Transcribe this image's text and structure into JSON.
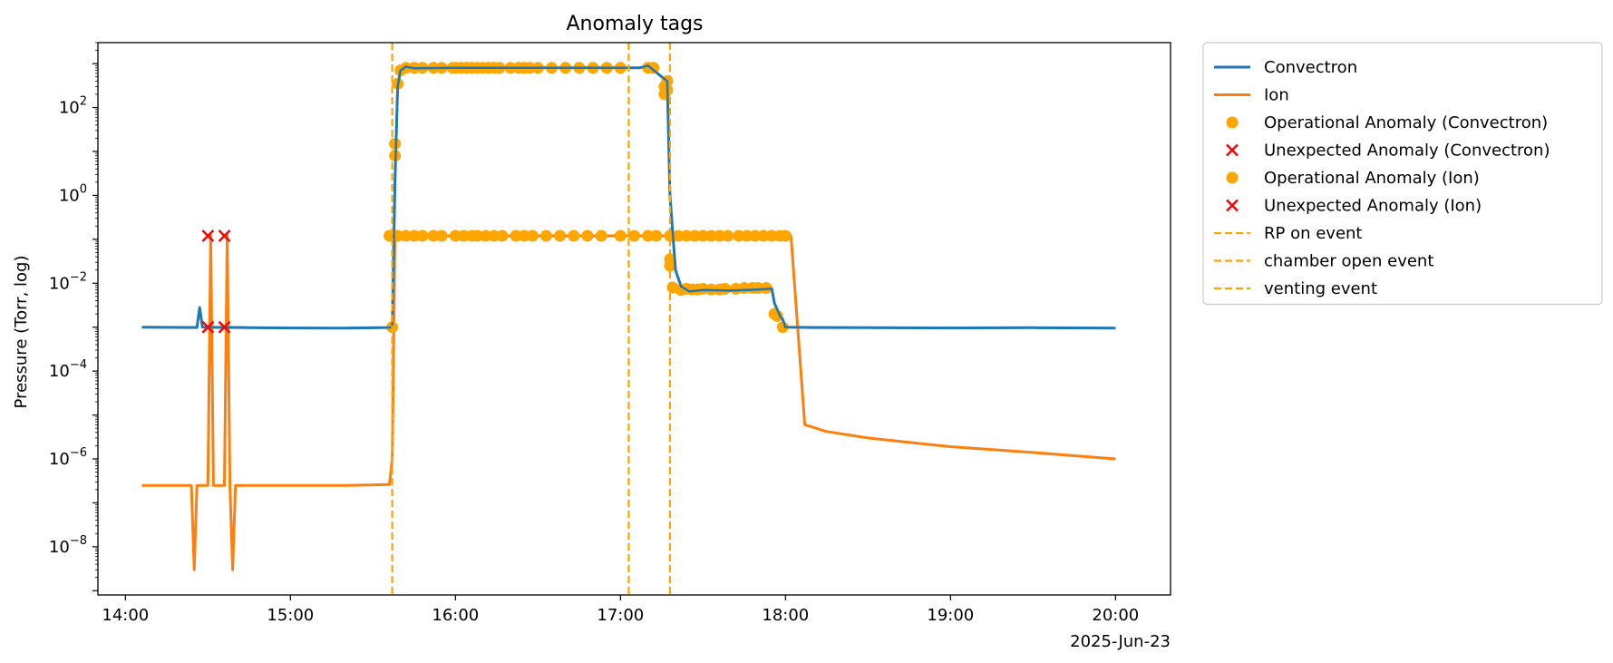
{
  "chart_data": {
    "type": "line",
    "title": "Anomaly tags",
    "ylabel": "Pressure (Torr, log)",
    "xlabel": "",
    "x_date_label": "2025-Jun-23",
    "yscale": "log",
    "ylim": [
      8e-10,
      3000
    ],
    "xlim": [
      "13:50",
      "20:20"
    ],
    "x_ticks": [
      "14:00",
      "15:00",
      "16:00",
      "17:00",
      "18:00",
      "19:00",
      "20:00"
    ],
    "y_ticks": [
      {
        "exp": 2,
        "value": 100
      },
      {
        "exp": 0,
        "value": 1
      },
      {
        "exp": -2,
        "value": 0.01
      },
      {
        "exp": -4,
        "value": 0.0001
      },
      {
        "exp": -6,
        "value": 1e-06
      },
      {
        "exp": -8,
        "value": 1e-08
      }
    ],
    "grid": false,
    "legend_position": "outside-upper-right",
    "colors": {
      "convectron": "#1f77b4",
      "ion": "#ff7f0e",
      "operational": "#ffa500",
      "unexpected": "#ff0000",
      "event": "#ffa500"
    },
    "series": [
      {
        "name": "Convectron",
        "key": "convectron",
        "points": [
          [
            "14:06",
            0.001
          ],
          [
            "14:26",
            0.00098
          ],
          [
            "14:27",
            0.0028
          ],
          [
            "14:28",
            0.001
          ],
          [
            "14:45",
            0.00097
          ],
          [
            "15:00",
            0.00096
          ],
          [
            "15:20",
            0.00095
          ],
          [
            "15:36",
            0.00098
          ],
          [
            "15:37",
            0.001
          ],
          [
            "15:38",
            2
          ],
          [
            "15:39",
            300
          ],
          [
            "15:40",
            700
          ],
          [
            "15:42",
            850
          ],
          [
            "15:45",
            780
          ],
          [
            "16:00",
            800
          ],
          [
            "16:30",
            800
          ],
          [
            "17:00",
            800
          ],
          [
            "17:07",
            800
          ],
          [
            "17:10",
            900
          ],
          [
            "17:15",
            500
          ],
          [
            "17:17",
            400
          ],
          [
            "17:18",
            1
          ],
          [
            "17:20",
            0.02
          ],
          [
            "17:22",
            0.0085
          ],
          [
            "17:25",
            0.0065
          ],
          [
            "17:30",
            0.007
          ],
          [
            "17:40",
            0.0068
          ],
          [
            "17:50",
            0.0072
          ],
          [
            "17:55",
            0.0075
          ],
          [
            "17:56",
            0.0035
          ],
          [
            "17:58",
            0.0018
          ],
          [
            "17:59",
            0.0015
          ],
          [
            "18:00",
            0.001
          ],
          [
            "18:10",
            0.00098
          ],
          [
            "18:30",
            0.00097
          ],
          [
            "19:00",
            0.00096
          ],
          [
            "19:30",
            0.00097
          ],
          [
            "20:00",
            0.00095
          ]
        ]
      },
      {
        "name": "Ion",
        "key": "ion",
        "points": [
          [
            "14:06",
            2.5e-07
          ],
          [
            "14:24",
            2.5e-07
          ],
          [
            "14:25",
            3e-09
          ],
          [
            "14:26",
            2.5e-07
          ],
          [
            "14:30",
            2.5e-07
          ],
          [
            "14:31",
            0.12
          ],
          [
            "14:32",
            2.5e-07
          ],
          [
            "14:36",
            2.5e-07
          ],
          [
            "14:37",
            0.12
          ],
          [
            "14:38",
            2.5e-07
          ],
          [
            "14:39",
            3e-09
          ],
          [
            "14:40",
            2.5e-07
          ],
          [
            "15:00",
            2.5e-07
          ],
          [
            "15:20",
            2.5e-07
          ],
          [
            "15:36",
            2.6e-07
          ],
          [
            "15:37",
            1e-06
          ],
          [
            "15:38",
            0.12
          ],
          [
            "16:00",
            0.12
          ],
          [
            "17:00",
            0.12
          ],
          [
            "17:30",
            0.12
          ],
          [
            "18:00",
            0.12
          ],
          [
            "18:02",
            0.12
          ],
          [
            "18:07",
            6e-06
          ],
          [
            "18:15",
            4.2e-06
          ],
          [
            "18:30",
            3e-06
          ],
          [
            "19:00",
            1.9e-06
          ],
          [
            "19:30",
            1.4e-06
          ],
          [
            "20:00",
            1e-06
          ]
        ]
      }
    ],
    "operational_anomalies_convectron": [
      [
        "15:37",
        0.001
      ],
      [
        "15:38",
        8
      ],
      [
        "15:38",
        15
      ],
      [
        "15:39",
        350
      ],
      [
        "15:40",
        700
      ],
      [
        "15:42",
        800
      ],
      [
        "15:45",
        800
      ],
      [
        "15:48",
        800
      ],
      [
        "15:52",
        800
      ],
      [
        "15:55",
        800
      ],
      [
        "15:59",
        800
      ],
      [
        "16:00",
        800
      ],
      [
        "16:02",
        800
      ],
      [
        "16:04",
        800
      ],
      [
        "16:06",
        800
      ],
      [
        "16:08",
        800
      ],
      [
        "16:10",
        800
      ],
      [
        "16:12",
        800
      ],
      [
        "16:14",
        800
      ],
      [
        "16:16",
        800
      ],
      [
        "16:20",
        800
      ],
      [
        "16:23",
        800
      ],
      [
        "16:25",
        800
      ],
      [
        "16:27",
        800
      ],
      [
        "16:30",
        800
      ],
      [
        "16:35",
        800
      ],
      [
        "16:40",
        800
      ],
      [
        "16:45",
        800
      ],
      [
        "16:50",
        800
      ],
      [
        "16:55",
        800
      ],
      [
        "17:00",
        800
      ],
      [
        "17:10",
        800
      ],
      [
        "17:12",
        800
      ],
      [
        "17:16",
        300
      ],
      [
        "17:16",
        200
      ],
      [
        "17:17",
        400
      ],
      [
        "17:17",
        250
      ],
      [
        "17:18",
        0.035
      ],
      [
        "17:18",
        0.025
      ],
      [
        "17:19",
        0.008
      ],
      [
        "17:22",
        0.007
      ],
      [
        "17:24",
        0.0075
      ],
      [
        "17:26",
        0.0072
      ],
      [
        "17:28",
        0.0072
      ],
      [
        "17:30",
        0.0075
      ],
      [
        "17:33",
        0.0072
      ],
      [
        "17:36",
        0.0072
      ],
      [
        "17:38",
        0.0075
      ],
      [
        "17:42",
        0.0075
      ],
      [
        "17:45",
        0.0078
      ],
      [
        "17:48",
        0.0078
      ],
      [
        "17:50",
        0.0078
      ],
      [
        "17:53",
        0.0078
      ],
      [
        "17:56",
        0.002
      ],
      [
        "17:57",
        0.0018
      ],
      [
        "17:59",
        0.001
      ]
    ],
    "operational_anomalies_ion": [
      [
        "15:36",
        0.12
      ],
      [
        "15:39",
        0.12
      ],
      [
        "15:42",
        0.12
      ],
      [
        "15:45",
        0.12
      ],
      [
        "15:48",
        0.12
      ],
      [
        "15:52",
        0.12
      ],
      [
        "15:55",
        0.12
      ],
      [
        "16:00",
        0.12
      ],
      [
        "16:03",
        0.12
      ],
      [
        "16:06",
        0.12
      ],
      [
        "16:08",
        0.12
      ],
      [
        "16:11",
        0.12
      ],
      [
        "16:14",
        0.12
      ],
      [
        "16:17",
        0.12
      ],
      [
        "16:22",
        0.12
      ],
      [
        "16:25",
        0.12
      ],
      [
        "16:28",
        0.12
      ],
      [
        "16:33",
        0.12
      ],
      [
        "16:38",
        0.12
      ],
      [
        "16:43",
        0.12
      ],
      [
        "16:48",
        0.12
      ],
      [
        "16:53",
        0.12
      ],
      [
        "17:00",
        0.12
      ],
      [
        "17:05",
        0.12
      ],
      [
        "17:10",
        0.12
      ],
      [
        "17:13",
        0.12
      ],
      [
        "17:18",
        0.12
      ],
      [
        "17:21",
        0.12
      ],
      [
        "17:24",
        0.12
      ],
      [
        "17:27",
        0.12
      ],
      [
        "17:30",
        0.12
      ],
      [
        "17:33",
        0.12
      ],
      [
        "17:36",
        0.12
      ],
      [
        "17:39",
        0.12
      ],
      [
        "17:43",
        0.12
      ],
      [
        "17:46",
        0.12
      ],
      [
        "17:49",
        0.12
      ],
      [
        "17:52",
        0.12
      ],
      [
        "17:55",
        0.12
      ],
      [
        "17:58",
        0.12
      ],
      [
        "18:00",
        0.12
      ]
    ],
    "unexpected_anomalies_convectron": [
      [
        "14:30",
        0.001
      ],
      [
        "14:36",
        0.001
      ]
    ],
    "unexpected_anomalies_ion": [
      [
        "14:30",
        0.12
      ],
      [
        "14:36",
        0.12
      ]
    ],
    "events": [
      {
        "name": "RP on event",
        "time": "15:37"
      },
      {
        "name": "chamber open event",
        "time": "17:03"
      },
      {
        "name": "venting event",
        "time": "17:18"
      }
    ],
    "legend": [
      {
        "label": "Convectron",
        "kind": "line",
        "color_key": "convectron"
      },
      {
        "label": "Ion",
        "kind": "line",
        "color_key": "ion"
      },
      {
        "label": "Operational Anomaly (Convectron)",
        "kind": "dot",
        "color_key": "operational"
      },
      {
        "label": "Unexpected Anomaly (Convectron)",
        "kind": "cross",
        "color_key": "unexpected"
      },
      {
        "label": "Operational Anomaly (Ion)",
        "kind": "dot",
        "color_key": "operational"
      },
      {
        "label": "Unexpected Anomaly (Ion)",
        "kind": "cross",
        "color_key": "unexpected"
      },
      {
        "label": "RP on event",
        "kind": "dash",
        "color_key": "event"
      },
      {
        "label": "chamber open event",
        "kind": "dash",
        "color_key": "event"
      },
      {
        "label": "venting event",
        "kind": "dash",
        "color_key": "event"
      }
    ]
  }
}
